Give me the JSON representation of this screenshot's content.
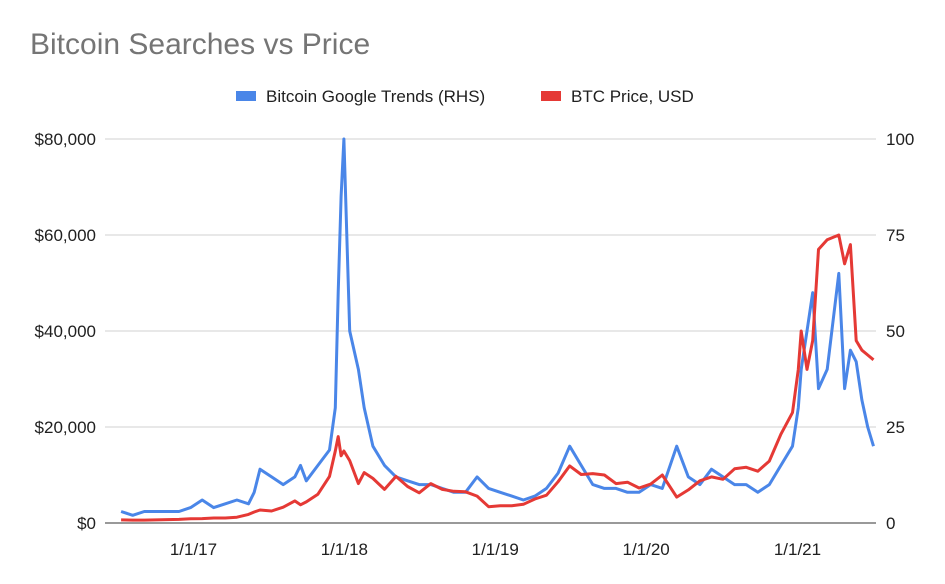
{
  "chart_data": {
    "type": "line",
    "title": "Bitcoin Searches vs Price",
    "xlabel": "",
    "ylabel": "",
    "legend_position": "top-center",
    "grid": true,
    "x_tick_labels": [
      "1/1/17",
      "1/1/18",
      "1/1/19",
      "1/1/20",
      "1/1/21"
    ],
    "y_left": {
      "ticks": [
        "$0",
        "$20,000",
        "$40,000",
        "$60,000",
        "$80,000"
      ],
      "range": [
        0,
        80000
      ]
    },
    "y_right": {
      "ticks": [
        "0",
        "25",
        "50",
        "75",
        "100"
      ],
      "range": [
        0,
        100
      ]
    },
    "x": [
      "2016-07-10",
      "2016-08-07",
      "2016-09-04",
      "2016-10-02",
      "2016-10-30",
      "2016-11-27",
      "2016-12-25",
      "2017-01-22",
      "2017-02-19",
      "2017-03-19",
      "2017-04-16",
      "2017-05-14",
      "2017-05-28",
      "2017-06-11",
      "2017-07-09",
      "2017-08-06",
      "2017-09-03",
      "2017-09-17",
      "2017-10-01",
      "2017-10-29",
      "2017-11-26",
      "2017-12-10",
      "2017-12-17",
      "2017-12-24",
      "2017-12-31",
      "2018-01-14",
      "2018-02-04",
      "2018-02-18",
      "2018-03-11",
      "2018-04-08",
      "2018-05-06",
      "2018-06-03",
      "2018-07-01",
      "2018-07-29",
      "2018-08-26",
      "2018-09-23",
      "2018-10-21",
      "2018-11-18",
      "2018-12-16",
      "2019-01-13",
      "2019-02-10",
      "2019-03-10",
      "2019-04-07",
      "2019-05-05",
      "2019-06-02",
      "2019-06-30",
      "2019-07-28",
      "2019-08-25",
      "2019-09-22",
      "2019-10-20",
      "2019-11-17",
      "2019-12-15",
      "2020-01-12",
      "2020-02-09",
      "2020-03-15",
      "2020-04-12",
      "2020-05-10",
      "2020-06-07",
      "2020-07-05",
      "2020-08-02",
      "2020-08-30",
      "2020-09-27",
      "2020-10-25",
      "2020-11-22",
      "2020-12-20",
      "2021-01-03",
      "2021-01-10",
      "2021-01-24",
      "2021-02-07",
      "2021-02-21",
      "2021-03-14",
      "2021-04-11",
      "2021-04-25",
      "2021-05-09",
      "2021-05-23",
      "2021-06-06",
      "2021-06-20",
      "2021-07-04"
    ],
    "series": [
      {
        "name": "Bitcoin Google Trends (RHS)",
        "axis": "right",
        "color": "#4a86e8",
        "values": [
          3,
          2,
          3,
          3,
          3,
          3,
          4,
          6,
          4,
          5,
          6,
          5,
          8,
          14,
          12,
          10,
          12,
          15,
          11,
          15,
          19,
          30,
          60,
          85,
          100,
          50,
          40,
          30,
          20,
          15,
          12,
          11,
          10,
          10,
          9,
          8,
          8,
          12,
          9,
          8,
          7,
          6,
          7,
          9,
          13,
          20,
          15,
          10,
          9,
          9,
          8,
          8,
          10,
          9,
          20,
          12,
          10,
          14,
          12,
          10,
          10,
          8,
          10,
          15,
          20,
          30,
          40,
          50,
          60,
          35,
          40,
          65,
          35,
          45,
          42,
          32,
          25,
          20
        ]
      },
      {
        "name": "BTC Price, USD",
        "axis": "left",
        "color": "#e53935",
        "values": [
          650,
          600,
          610,
          640,
          700,
          740,
          900,
          920,
          1050,
          1050,
          1200,
          1800,
          2300,
          2700,
          2500,
          3300,
          4600,
          3800,
          4400,
          6000,
          9700,
          15000,
          18000,
          14000,
          15000,
          13000,
          8200,
          10500,
          9300,
          7000,
          9700,
          7600,
          6300,
          8200,
          7000,
          6600,
          6500,
          5600,
          3400,
          3600,
          3600,
          3900,
          5000,
          5800,
          8600,
          11900,
          10100,
          10300,
          10000,
          8200,
          8500,
          7300,
          8100,
          10000,
          5400,
          6900,
          8800,
          9600,
          9100,
          11300,
          11600,
          10800,
          12900,
          18500,
          23000,
          32000,
          40000,
          32000,
          38000,
          57000,
          59000,
          60000,
          54000,
          58000,
          38000,
          36000,
          35000,
          34000
        ]
      }
    ]
  },
  "colors": {
    "trends": "#4a86e8",
    "price": "#e53935",
    "grid": "#d0d0d0",
    "axis": "#333333",
    "title": "#757575"
  }
}
